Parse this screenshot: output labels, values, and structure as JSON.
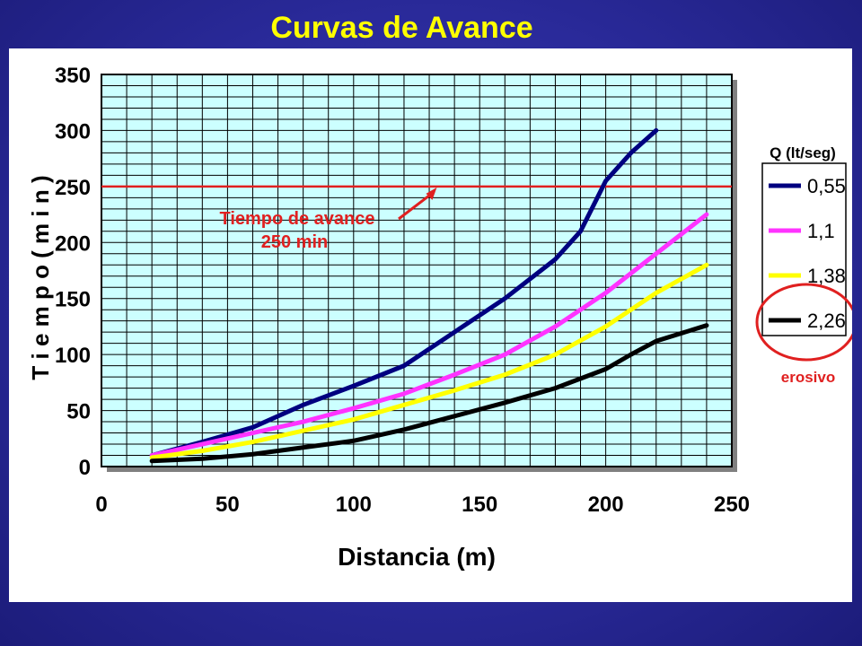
{
  "slide": {
    "title": "Curvas de Avance"
  },
  "chart_data": {
    "type": "line",
    "xlabel": "Distancia (m)",
    "ylabel": "T i e m p o  ( m i n )",
    "xlim": [
      0,
      250
    ],
    "ylim": [
      0,
      350
    ],
    "xticks": [
      "0",
      "50",
      "100",
      "150",
      "200",
      "250"
    ],
    "yticks": [
      "0",
      "50",
      "100",
      "150",
      "200",
      "250",
      "300",
      "350"
    ],
    "grid": true,
    "plot_background": "#ccffff",
    "legend": {
      "title": "Q (lt/seg)",
      "placement": "right"
    },
    "series": [
      {
        "name": "0,55",
        "color": "#000080",
        "x": [
          20,
          40,
          60,
          80,
          100,
          120,
          140,
          160,
          180,
          190,
          200,
          210,
          220
        ],
        "y": [
          10,
          22,
          35,
          55,
          72,
          90,
          120,
          150,
          185,
          210,
          255,
          280,
          300
        ]
      },
      {
        "name": "1,1",
        "color": "#ff33ff",
        "x": [
          20,
          40,
          60,
          80,
          100,
          120,
          140,
          160,
          180,
          200,
          220,
          240
        ],
        "y": [
          10,
          20,
          30,
          40,
          52,
          65,
          82,
          100,
          125,
          155,
          190,
          225
        ]
      },
      {
        "name": "1,38",
        "color": "#ffff00",
        "x": [
          20,
          40,
          60,
          80,
          100,
          120,
          140,
          160,
          180,
          200,
          220,
          240
        ],
        "y": [
          8,
          14,
          22,
          32,
          42,
          55,
          68,
          82,
          100,
          125,
          155,
          180
        ]
      },
      {
        "name": "2,26",
        "color": "#000000",
        "x": [
          20,
          40,
          60,
          80,
          100,
          120,
          140,
          160,
          180,
          200,
          210,
          220,
          240
        ],
        "y": [
          5,
          7,
          11,
          17,
          23,
          33,
          45,
          57,
          70,
          87,
          100,
          112,
          126
        ]
      }
    ],
    "reference_line": {
      "y": 250,
      "color": "#e02020"
    },
    "annotation": {
      "line1": "Tiempo de avance",
      "line2": "250 min",
      "color": "#e02020",
      "arrow_target": [
        133,
        250
      ]
    },
    "highlight": {
      "series": "2,26",
      "label": "erosivo",
      "color": "#e02020"
    }
  }
}
